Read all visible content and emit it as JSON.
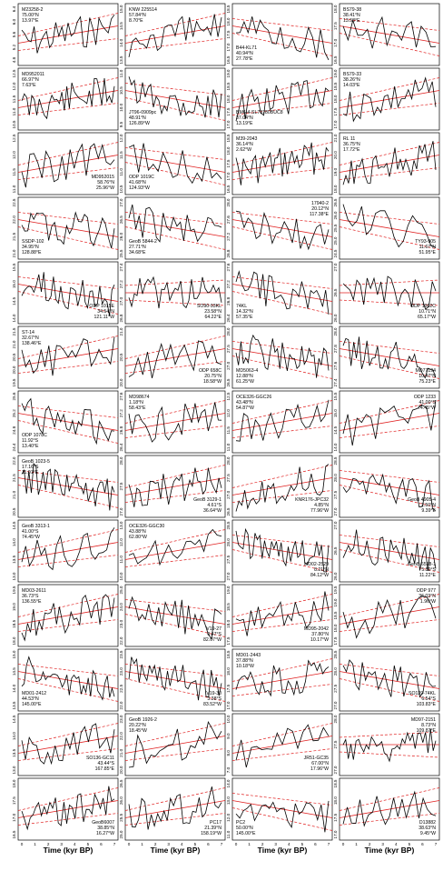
{
  "chart_data": {
    "type": "line",
    "xlabel": "Time (kyr BP)",
    "xlim": [
      0,
      7
    ],
    "x_ticks": [
      "0",
      "1",
      "2",
      "3",
      "4",
      "5",
      "6",
      "7"
    ],
    "line_color": "#000000",
    "trend_color": "#e02020",
    "panels": [
      {
        "site": "M23258-2",
        "lat": "75.00°N",
        "lon": "13.97°E",
        "label_pos": "top-left",
        "trend": "up",
        "yticks": [
          "4.8",
          "5.2",
          "5.6",
          "6.0",
          "6.4"
        ]
      },
      {
        "site": "KNW 225514",
        "lat": "57.84°N",
        "lon": "8.70°E",
        "label_pos": "top-left",
        "trend": "up",
        "yticks": [
          "13.5",
          "14.0",
          "14.5",
          "15.0"
        ]
      },
      {
        "site": "B44-KL71",
        "lat": "40.94°N",
        "lon": "27.78°E",
        "label_pos": "bottom-left",
        "trend": "down",
        "yticks": [
          "16.5",
          "17.0",
          "17.5",
          "18.0",
          "18.5"
        ]
      },
      {
        "site": "BS79-38",
        "lat": "38.41°N",
        "lon": "13.58°E",
        "label_pos": "top-left",
        "trend": "down",
        "yticks": [
          "16.5",
          "17.0",
          "17.5",
          "18.0"
        ]
      },
      {
        "site": "MD952011",
        "lat": "66.97°N",
        "lon": "7.63°E",
        "label_pos": "top-left",
        "trend": "up",
        "yticks": [
          "10.5",
          "11.0",
          "11.5",
          "12.0",
          "12.5"
        ]
      },
      {
        "site": "JT96-0909pc",
        "lat": "48.91°N",
        "lon": "126.89°W",
        "label_pos": "bottom-left",
        "trend": "down",
        "yticks": [
          "9.5",
          "10.0",
          "10.5",
          "11.0"
        ]
      },
      {
        "site": "BM6-4-SL70780BUC8",
        "lat": "37.04°N",
        "lon": "13.19°E",
        "label_pos": "bottom-left",
        "trend": "up",
        "yticks": [
          "17.0",
          "17.5",
          "18.0",
          "18.5",
          "19.0"
        ]
      },
      {
        "site": "BS79-33",
        "lat": "38.26°N",
        "lon": "14.03°E",
        "label_pos": "top-left",
        "trend": "up",
        "yticks": [
          "17.0",
          "17.5",
          "18.0",
          "18.5",
          "19.0"
        ]
      },
      {
        "site": "MD952015",
        "lat": "58.76°N",
        "lon": "25.96°W",
        "label_pos": "bottom-right",
        "trend": "up",
        "yticks": [
          "11.0",
          "11.5",
          "12.0",
          "12.5"
        ]
      },
      {
        "site": "ODP 1019C",
        "lat": "41.68°N",
        "lon": "124.93°W",
        "label_pos": "bottom-left",
        "trend": "down",
        "yticks": [
          "10.5",
          "11.0",
          "11.5",
          "12.0"
        ]
      },
      {
        "site": "M39-2043",
        "lat": "36.14°N",
        "lon": "2.62°W",
        "label_pos": "top-left",
        "trend": "up",
        "yticks": [
          "16.5",
          "17.0",
          "17.5",
          "18.0",
          "18.5"
        ]
      },
      {
        "site": "RL 11",
        "lat": "36.75°N",
        "lon": "17.72°E",
        "label_pos": "top-left",
        "trend": "up",
        "yticks": [
          "18.0",
          "19.0",
          "20.0",
          "21.0"
        ]
      },
      {
        "site": "SSDP-102",
        "lat": "34.95°N",
        "lon": "128.88°E",
        "label_pos": "bottom-left",
        "trend": "down",
        "yticks": [
          "21.0",
          "21.5",
          "22.0",
          "22.5"
        ]
      },
      {
        "site": "GeoB 5844-2",
        "lat": "27.71°N",
        "lon": "34.68°E",
        "label_pos": "bottom-left",
        "trend": "down",
        "yticks": [
          "25.5",
          "26.0",
          "26.5",
          "27.0"
        ]
      },
      {
        "site": "17940-2",
        "lat": "20.12°N",
        "lon": "117.38°E",
        "label_pos": "top-right",
        "trend": "down",
        "yticks": [
          "26.8",
          "27.2",
          "27.6",
          "28.0"
        ]
      },
      {
        "site": "TY93-905",
        "lat": "11.67°N",
        "lon": "51.95°E",
        "label_pos": "bottom-right",
        "trend": "down",
        "yticks": [
          "24.5",
          "25.0",
          "25.5",
          "26.0",
          "26.5"
        ]
      },
      {
        "site": "ODP 1015E",
        "lat": "34.54°N",
        "lon": "121.11°W",
        "label_pos": "bottom-right",
        "trend": "down",
        "yticks": [
          "14.0",
          "14.5",
          "15.0",
          "15.5"
        ]
      },
      {
        "site": "SO90-93KL",
        "lat": "23.58°N",
        "lon": "64.22°E",
        "label_pos": "bottom-right",
        "trend": "flat",
        "yticks": [
          "26.8",
          "27.0",
          "27.2",
          "27.4"
        ]
      },
      {
        "site": "74KL",
        "lat": "14.32°N",
        "lon": "57.35°E",
        "label_pos": "bottom-left",
        "trend": "down",
        "yticks": [
          "26.4",
          "26.8",
          "27.2",
          "27.6"
        ]
      },
      {
        "site": "ODP 1002C",
        "lat": "10.71°N",
        "lon": "65.17°W",
        "label_pos": "bottom-right",
        "trend": "flat",
        "yticks": [
          "26.0",
          "26.5",
          "27.0"
        ]
      },
      {
        "site": "ST-14",
        "lat": "32.67°N",
        "lon": "138.46°E",
        "label_pos": "top-left",
        "trend": "up",
        "yticks": [
          "19.5",
          "20.0",
          "20.5",
          "21.0",
          "21.5"
        ]
      },
      {
        "site": "ODP 658C",
        "lat": "20.75°N",
        "lon": "18.58°W",
        "label_pos": "bottom-right",
        "trend": "up",
        "yticks": [
          "20.0",
          "20.5",
          "21.0"
        ]
      },
      {
        "site": "MD5063-4",
        "lat": "12.88°N",
        "lon": "61.25°W",
        "label_pos": "bottom-left",
        "trend": "down",
        "yticks": [
          "26.5",
          "27.0",
          "27.5",
          "28.0"
        ]
      },
      {
        "site": "MD77194",
        "lat": "10.47°N",
        "lon": "75.23°E",
        "label_pos": "bottom-right",
        "trend": "down",
        "yticks": [
          "27.4",
          "27.6",
          "27.8",
          "28.0"
        ]
      },
      {
        "site": "ODP 1078C",
        "lat": "11.92°S",
        "lon": "13.40°E",
        "label_pos": "bottom-left",
        "trend": "down",
        "yticks": [
          "24.4",
          "24.8",
          "25.2",
          "25.6"
        ]
      },
      {
        "site": "MD98674",
        "lat": "1.18°N",
        "lon": "58.43°E",
        "label_pos": "top-left",
        "trend": "up",
        "yticks": [
          "26.4",
          "26.8",
          "27.2",
          "27.6"
        ]
      },
      {
        "site": "OCE326-GGC26",
        "lat": "43.48°N",
        "lon": "54.87°W",
        "label_pos": "top-left",
        "trend": "up",
        "yticks": [
          "11.0",
          "11.5",
          "12.0",
          "12.5"
        ]
      },
      {
        "site": "ODP 1233",
        "lat": "41.00°S",
        "lon": "74.45°W",
        "label_pos": "top-right",
        "trend": "up",
        "yticks": [
          "14.0",
          "14.5",
          "15.0",
          "15.5"
        ]
      },
      {
        "site": "GeoB 1023-5",
        "lat": "17.16°S",
        "lon": "11.01°E",
        "label_pos": "top-left",
        "trend": "down",
        "yticks": [
          "20.5",
          "21.0",
          "21.5",
          "22.0"
        ]
      },
      {
        "site": "GeoB 3129-1",
        "lat": "4.61°S",
        "lon": "36.64°W",
        "label_pos": "bottom-right",
        "trend": "up",
        "yticks": [
          "27.0",
          "27.5",
          "28.0"
        ]
      },
      {
        "site": "KNR176-JPC32",
        "lat": "4.85°N",
        "lon": "77.96°W",
        "label_pos": "bottom-right",
        "trend": "up",
        "yticks": [
          "26.5",
          "27.0",
          "27.5",
          "28.0"
        ]
      },
      {
        "site": "GeoB 4905-4",
        "lat": "2.50°N",
        "lon": "9.39°E",
        "label_pos": "bottom-right",
        "trend": "down",
        "yticks": [
          "27.0",
          "27.5",
          "28.0",
          "28.5"
        ]
      },
      {
        "site": "GeoB 3313-1",
        "lat": "41.00°S",
        "lon": "74.45°W",
        "label_pos": "top-left",
        "trend": "up",
        "yticks": [
          "13.0",
          "13.5",
          "14.0",
          "14.5"
        ]
      },
      {
        "site": "OCE326-GGC30",
        "lat": "43.88°N",
        "lon": "62.80°W",
        "label_pos": "top-left",
        "trend": "up",
        "yticks": [
          "10.0",
          "11.0",
          "12.0",
          "13.0"
        ]
      },
      {
        "site": "MD02-2529",
        "lat": "8.21°N",
        "lon": "84.12°W",
        "label_pos": "bottom-right",
        "trend": "down",
        "yticks": [
          "27.0",
          "27.5",
          "28.0",
          "28.5"
        ]
      },
      {
        "site": "GeoB 6518-1",
        "lat": "5.59°S",
        "lon": "11.22°E",
        "label_pos": "bottom-right",
        "trend": "down",
        "yticks": [
          "26.0",
          "26.5",
          "27.0"
        ]
      },
      {
        "site": "MD03-2611",
        "lat": "36.73°S",
        "lon": "136.55°E",
        "label_pos": "top-left",
        "trend": "up",
        "yticks": [
          "18.0",
          "18.5",
          "19.0",
          "19.5"
        ]
      },
      {
        "site": "V19-27",
        "lat": "0.47°S",
        "lon": "82.07°W",
        "label_pos": "bottom-right",
        "trend": "down",
        "yticks": [
          "22.0",
          "23.0",
          "24.0",
          "25.0"
        ]
      },
      {
        "site": "MD95-2042",
        "lat": "37.80°N",
        "lon": "10.17°W",
        "label_pos": "bottom-right",
        "trend": "up",
        "yticks": [
          "17.5",
          "18.0",
          "18.5",
          "19.0"
        ]
      },
      {
        "site": "ODP 977",
        "lat": "36.03°N",
        "lon": "1.96°W",
        "label_pos": "top-right",
        "trend": "up",
        "yticks": [
          "17.5",
          "18.0",
          "18.5",
          "19.0",
          "19.5"
        ]
      },
      {
        "site": "MD01-2412",
        "lat": "44.53°N",
        "lon": "145.00°E",
        "label_pos": "bottom-left",
        "trend": "down",
        "yticks": [
          "13.5",
          "14.0",
          "14.5",
          "15.0"
        ]
      },
      {
        "site": "V19-30",
        "lat": "3.38°S",
        "lon": "83.52°W",
        "label_pos": "bottom-right",
        "trend": "down",
        "yticks": [
          "22.0",
          "22.5",
          "23.0",
          "23.5"
        ]
      },
      {
        "site": "MD01-2443",
        "lat": "37.88°N",
        "lon": "10.18°W",
        "label_pos": "top-left",
        "trend": "up",
        "yticks": [
          "17.0",
          "17.5",
          "18.0",
          "18.5"
        ]
      },
      {
        "site": "SO139-74KL",
        "lat": "6.54°S",
        "lon": "103.83°E",
        "label_pos": "bottom-right",
        "trend": "down",
        "yticks": [
          "27.0",
          "27.5",
          "28.0",
          "28.5"
        ]
      },
      {
        "site": "SO136-GC11",
        "lat": "43.44°S",
        "lon": "167.85°E",
        "label_pos": "bottom-right",
        "trend": "up",
        "yticks": [
          "13.0",
          "13.5",
          "14.0",
          "14.5"
        ]
      },
      {
        "site": "GeoB 1926-2",
        "lat": "20.22°N",
        "lon": "18.45°W",
        "label_pos": "top-left",
        "trend": "up",
        "yticks": [
          "20.0",
          "21.0",
          "22.0",
          "23.0"
        ]
      },
      {
        "site": "JR51-GC35",
        "lat": "67.00°N",
        "lon": "17.96°W",
        "label_pos": "bottom-right",
        "trend": "up",
        "yticks": [
          "7.0",
          "8.0",
          "9.0",
          "10.0"
        ]
      },
      {
        "site": "MD97-2151",
        "lat": "8.73°N",
        "lon": "109.87°E",
        "label_pos": "top-right",
        "trend": "flat",
        "yticks": [
          "27.0",
          "27.5",
          "28.0"
        ]
      },
      {
        "site": "GeoB6007",
        "lat": "38.85°N",
        "lon": "16.27°W",
        "label_pos": "bottom-right",
        "trend": "up",
        "yticks": [
          "16.5",
          "17.0",
          "17.5",
          "18.0"
        ]
      },
      {
        "site": "PC17",
        "lat": "21.39°N",
        "lon": "158.19°W",
        "label_pos": "bottom-right",
        "trend": "up",
        "yticks": [
          "25.0",
          "25.5",
          "26.0",
          "26.5"
        ]
      },
      {
        "site": "PC2",
        "lat": "50.00°N",
        "lon": "145.00°E",
        "label_pos": "bottom-left",
        "trend": "down",
        "yticks": [
          "11.0",
          "12.0",
          "13.0",
          "14.0"
        ]
      },
      {
        "site": "D13882",
        "lat": "38.63°N",
        "lon": "9.45°W",
        "label_pos": "bottom-right",
        "trend": "up",
        "yticks": [
          "17.0",
          "17.5",
          "18.0",
          "18.5"
        ]
      }
    ]
  }
}
